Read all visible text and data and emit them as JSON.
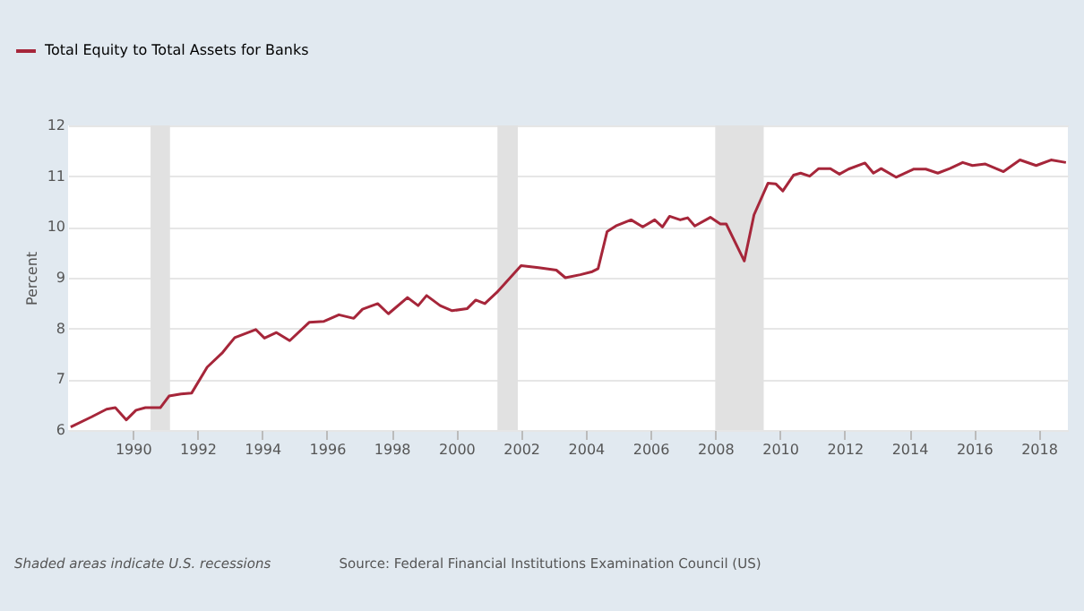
{
  "chart_data": {
    "type": "line",
    "x": [
      1988.08,
      1988.73,
      1989.19,
      1989.46,
      1989.8,
      1990.1,
      1990.39,
      1990.85,
      1991.12,
      1991.49,
      1991.82,
      1992.3,
      1992.78,
      1993.15,
      1993.8,
      1994.07,
      1994.44,
      1994.85,
      1995.45,
      1995.91,
      1996.37,
      1996.83,
      1997.1,
      1997.57,
      1997.9,
      1998.49,
      1998.82,
      1999.08,
      1999.5,
      1999.87,
      2000.33,
      2000.6,
      2000.88,
      2001.25,
      2002.0,
      2002.54,
      2003.09,
      2003.37,
      2003.83,
      2004.2,
      2004.38,
      2004.66,
      2004.93,
      2005.4,
      2005.76,
      2006.13,
      2006.37,
      2006.59,
      2006.92,
      2007.15,
      2007.37,
      2007.85,
      2008.16,
      2008.34,
      2008.9,
      2009.2,
      2009.63,
      2009.87,
      2010.09,
      2010.42,
      2010.64,
      2010.92,
      2011.2,
      2011.56,
      2011.84,
      2012.12,
      2012.63,
      2012.89,
      2013.13,
      2013.59,
      2014.14,
      2014.51,
      2014.88,
      2015.25,
      2015.65,
      2015.95,
      2016.35,
      2016.91,
      2017.42,
      2017.92,
      2018.38,
      2018.84
    ],
    "series": [
      {
        "name": "Total Equity to Total Assets for Banks",
        "color": "#a6263a",
        "values": [
          6.06,
          6.26,
          6.41,
          6.44,
          6.2,
          6.39,
          6.44,
          6.44,
          6.67,
          6.71,
          6.73,
          7.24,
          7.53,
          7.82,
          7.98,
          7.81,
          7.92,
          7.76,
          8.12,
          8.14,
          8.27,
          8.2,
          8.38,
          8.49,
          8.29,
          8.61,
          8.45,
          8.65,
          8.45,
          8.35,
          8.39,
          8.56,
          8.49,
          8.71,
          9.24,
          9.2,
          9.15,
          9.0,
          9.06,
          9.12,
          9.18,
          9.91,
          10.02,
          10.14,
          10.0,
          10.14,
          10.0,
          10.21,
          10.14,
          10.18,
          10.02,
          10.19,
          10.06,
          10.06,
          9.33,
          10.24,
          10.86,
          10.85,
          10.71,
          11.02,
          11.06,
          11.0,
          11.15,
          11.15,
          11.04,
          11.14,
          11.26,
          11.06,
          11.15,
          10.98,
          11.14,
          11.14,
          11.06,
          11.15,
          11.27,
          11.21,
          11.24,
          11.09,
          11.32,
          11.21,
          11.32,
          11.27
        ]
      }
    ],
    "ylabel": "Percent",
    "xlim": [
      1988,
      2018.9
    ],
    "xticks": [
      1990,
      1992,
      1994,
      1996,
      1998,
      2000,
      2002,
      2004,
      2006,
      2008,
      2010,
      2012,
      2014,
      2016,
      2018
    ],
    "ylim": [
      6,
      12
    ],
    "yticks": [
      6,
      7,
      8,
      9,
      10,
      11,
      12
    ],
    "bands": [
      {
        "axis": "x",
        "from": 1990.55,
        "to": 1991.15,
        "color": "#e1e1e1"
      },
      {
        "axis": "x",
        "from": 2001.27,
        "to": 2001.9,
        "color": "#e1e1e1"
      },
      {
        "axis": "x",
        "from": 2008.0,
        "to": 2009.5,
        "color": "#e1e1e1"
      }
    ],
    "annotations": [
      "Shaded areas indicate U.S. recessions",
      "Source: Federal Financial Institutions Examination Council (US)"
    ],
    "grid": "y",
    "legend": "top left",
    "marker": "none",
    "line_style": "solid"
  }
}
